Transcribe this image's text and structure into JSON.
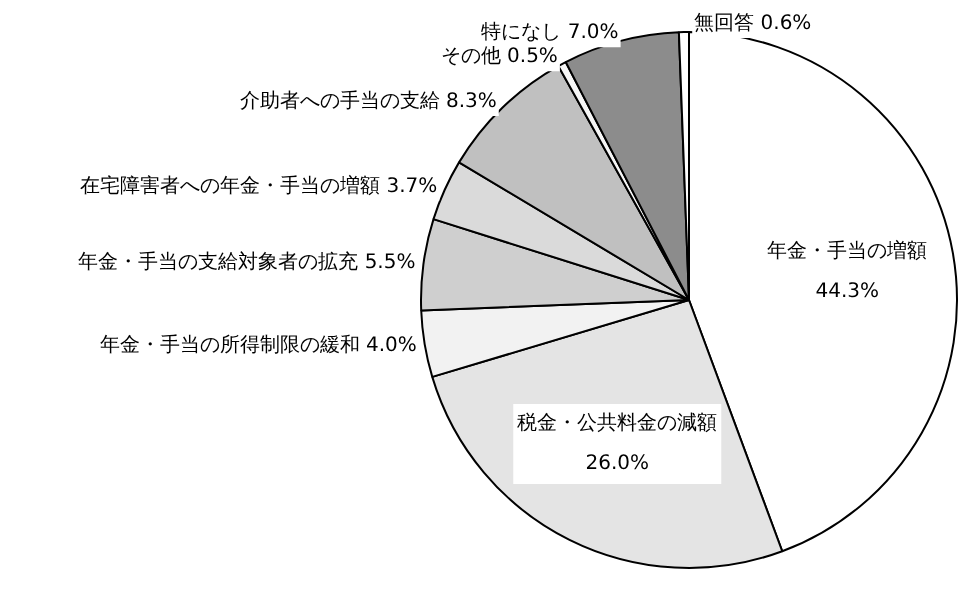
{
  "chart_data": {
    "type": "pie",
    "categories": [
      "年金・手当の増額",
      "税金・公共料金の減額",
      "年金・手当の所得制限の緩和",
      "年金・手当の支給対象者の拡充",
      "在宅障害者への年金・手当の増額",
      "介助者への手当の支給",
      "その他",
      "特になし",
      "無回答"
    ],
    "values": [
      44.3,
      26.0,
      4.0,
      5.5,
      3.7,
      8.3,
      0.5,
      7.0,
      0.6
    ],
    "colors": [
      "#ffffff",
      "#e4e4e4",
      "#f2f2f2",
      "#cfcfcf",
      "#dadada",
      "#c0c0c0",
      "#f6f6f6",
      "#8c8c8c",
      "#ffffff"
    ],
    "value_labels": [
      "44.3%",
      "26.0%",
      "4.0%",
      "5.5%",
      "3.7%",
      "8.3%",
      "0.5%",
      "7.0%",
      "0.6%"
    ],
    "legend": false
  }
}
